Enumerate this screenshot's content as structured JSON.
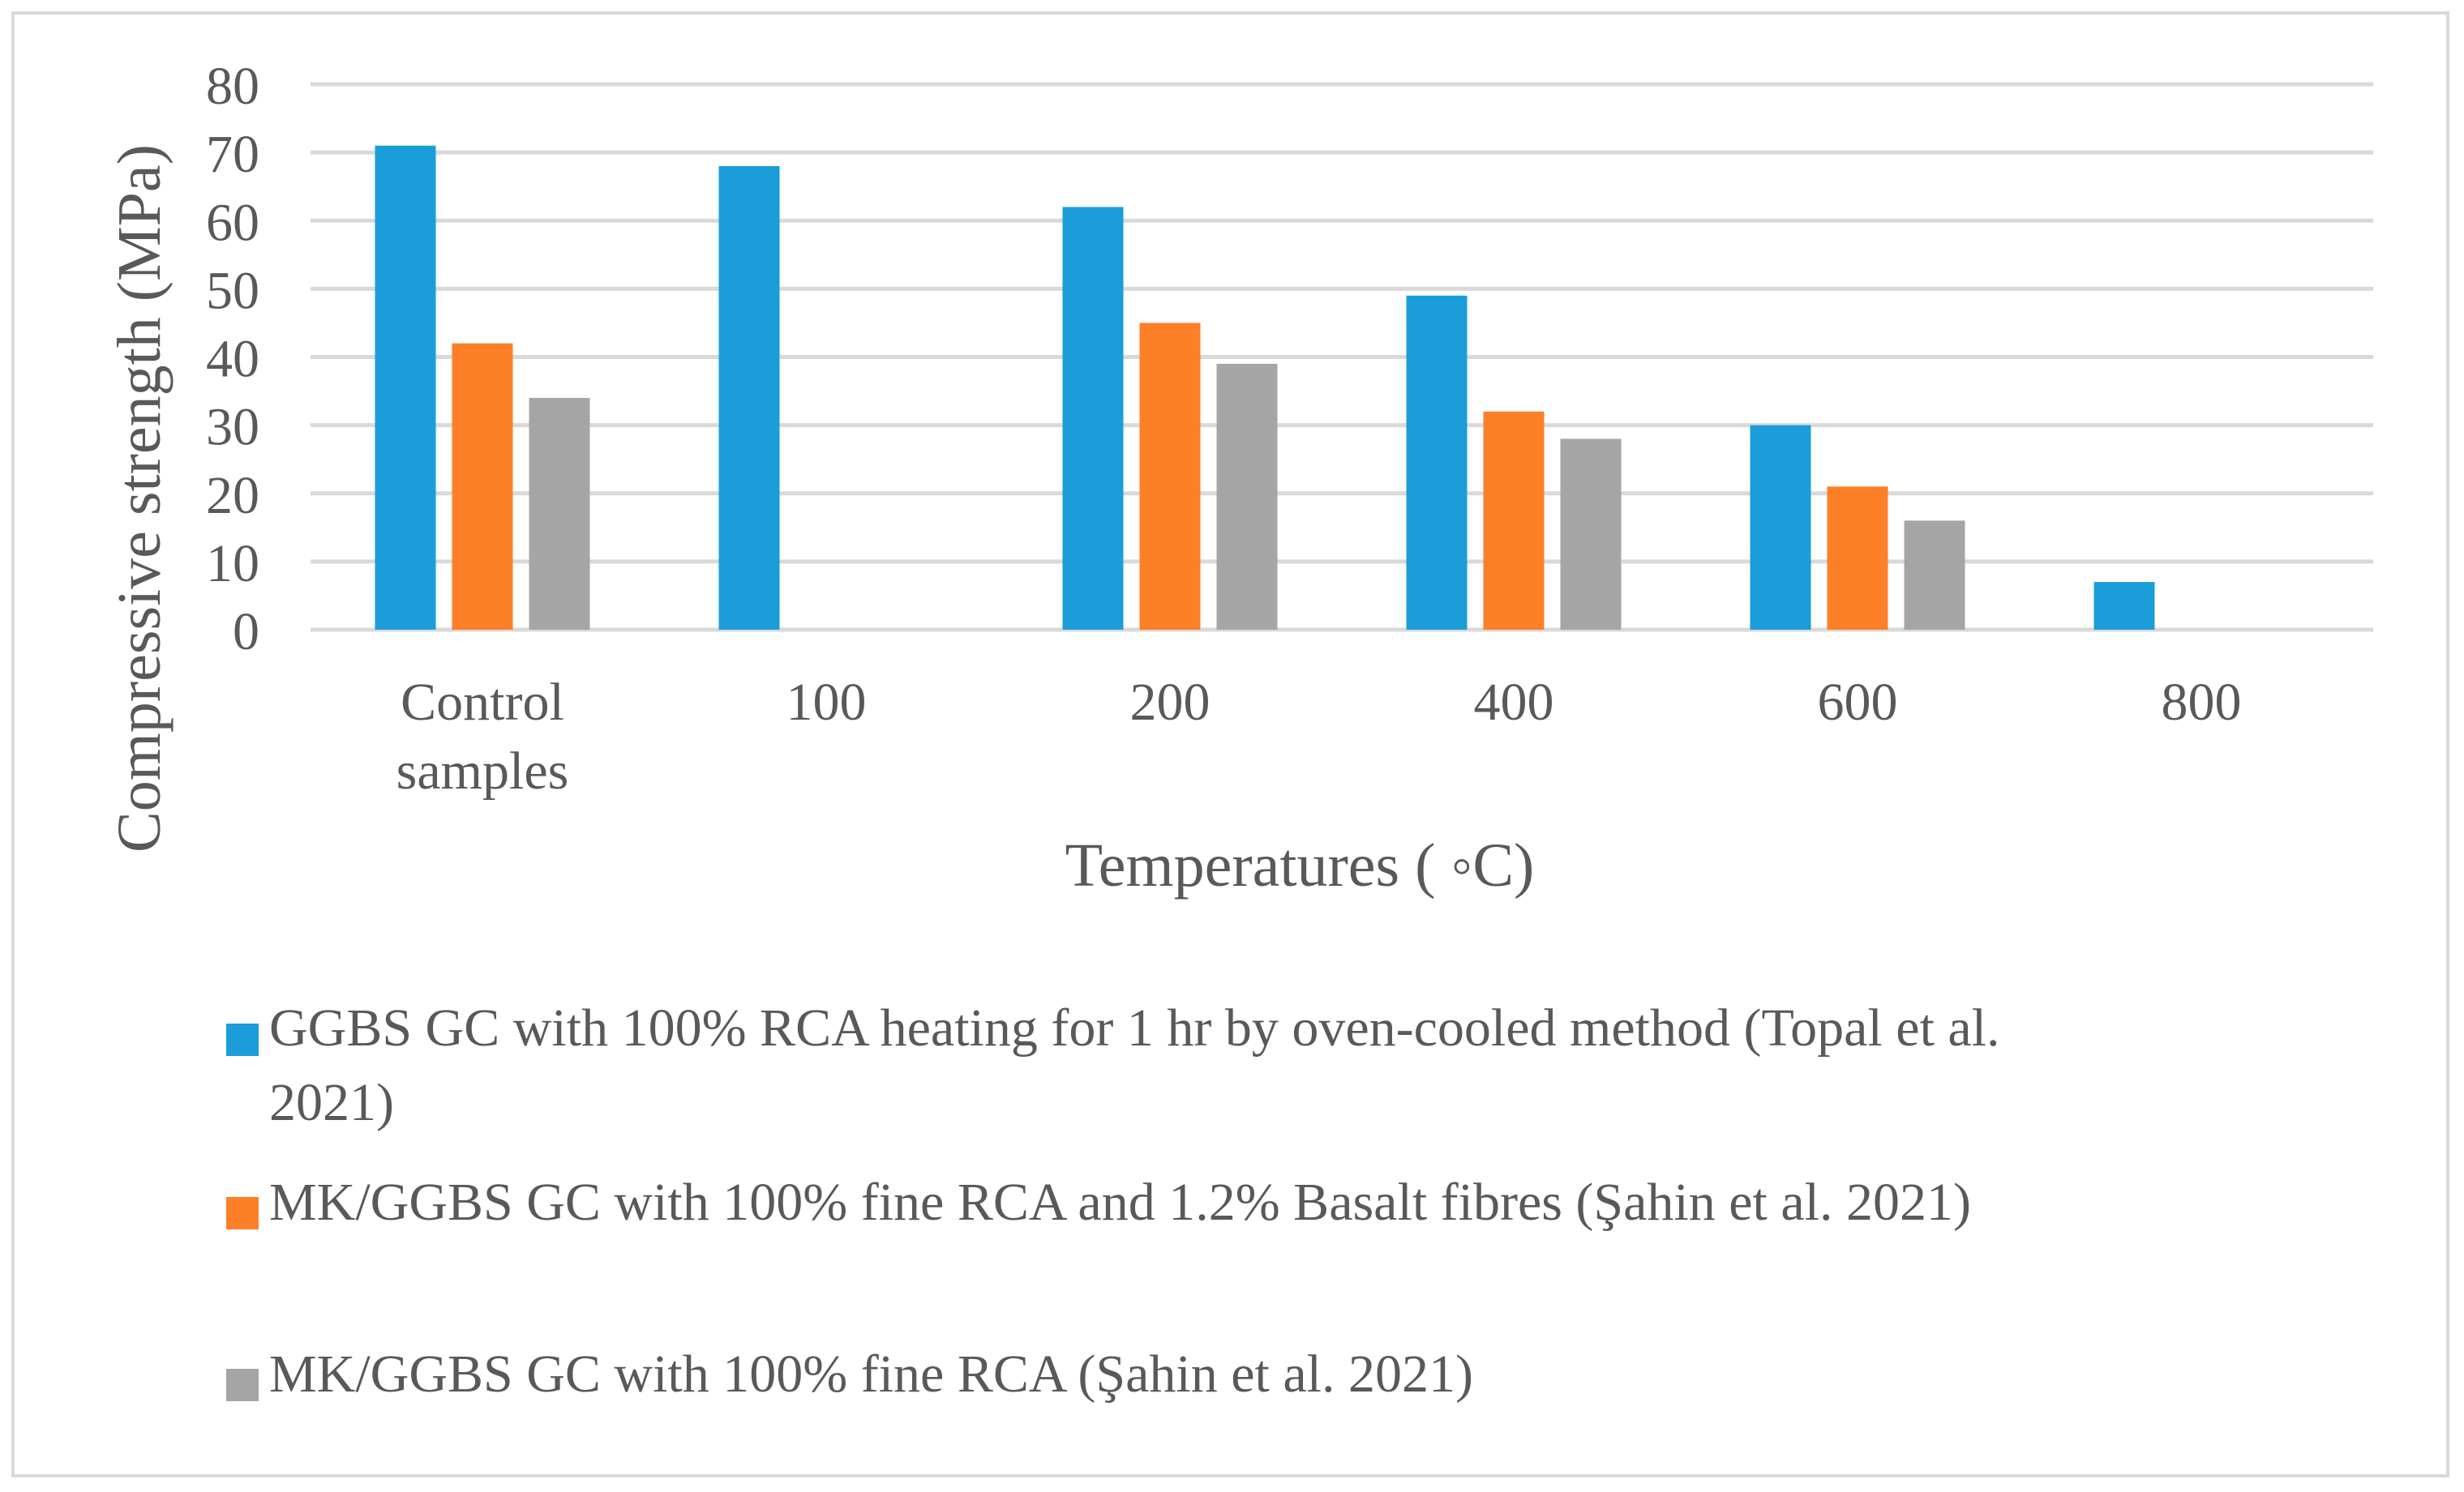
{
  "chart_data": {
    "type": "bar",
    "title": "",
    "xlabel": "Temperatures ( ◦C)",
    "ylabel": "Compressive strength (MPa)",
    "ylim": [
      0,
      80
    ],
    "yticks": [
      0,
      10,
      20,
      30,
      40,
      50,
      60,
      70,
      80
    ],
    "grid": true,
    "legend_position": "bottom",
    "categories": [
      [
        "Control",
        "samples"
      ],
      [
        "100"
      ],
      [
        "200"
      ],
      [
        "400"
      ],
      [
        "600"
      ],
      [
        "800"
      ]
    ],
    "series": [
      {
        "name": "GGBS GC with 100% RCA heating for 1 hr by oven-cooled method (Topal et al. 2021)",
        "legend_lines": [
          "GGBS GC with 100% RCA heating for 1 hr by oven-cooled method (Topal et al.",
          "2021)"
        ],
        "color": "#1b9dd9",
        "values": [
          71,
          68,
          62,
          49,
          30,
          7
        ]
      },
      {
        "name": "MK/GGBS GC with 100% fine RCA and 1.2% Basalt fibres (Şahin et al. 2021)",
        "legend_lines": [
          "MK/GGBS GC with 100% fine RCA and 1.2% Basalt fibres (Şahin et al. 2021)"
        ],
        "color": "#fd7f28",
        "values": [
          42,
          null,
          45,
          32,
          21,
          null
        ]
      },
      {
        "name": "MK/GGBS GC with 100% fine RCA  (Şahin et al. 2021)",
        "legend_lines": [
          "MK/GGBS GC with 100% fine RCA  (Şahin et al. 2021)"
        ],
        "color": "#a5a5a5",
        "values": [
          34,
          null,
          39,
          28,
          16,
          null
        ]
      }
    ]
  }
}
